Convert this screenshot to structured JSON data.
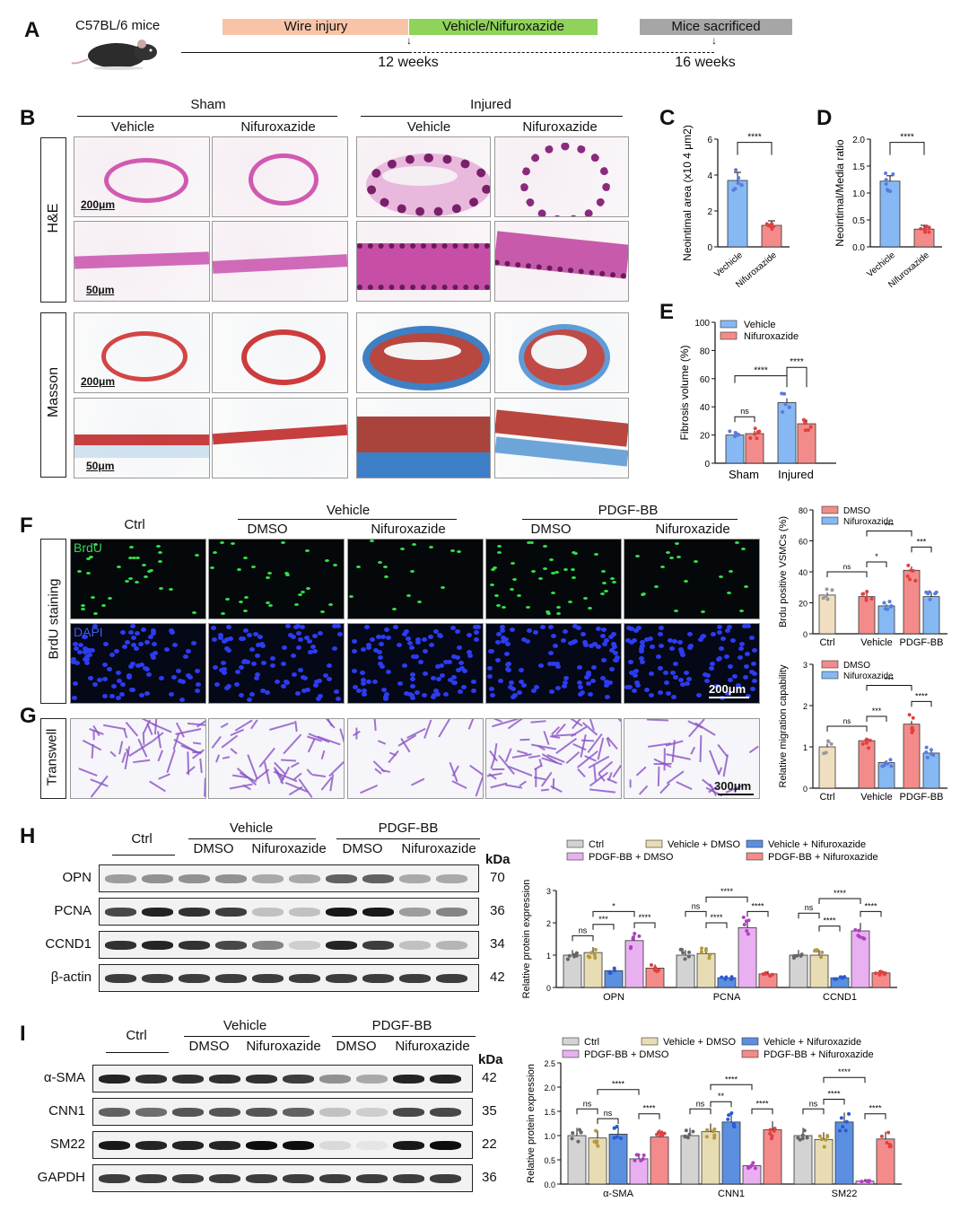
{
  "panelA": {
    "label": "A",
    "mouse": "C57BL/6 mice",
    "bar1": "Wire injury",
    "bar2": "Vehicle/Nifuroxazide",
    "bar3": "Mice sacrificed",
    "t1": "12 weeks",
    "t2": "16 weeks",
    "colors": {
      "bar1": "#f8c4a8",
      "bar2": "#8fd35a",
      "bar3": "#a6a6a6"
    }
  },
  "panelB": {
    "label": "B",
    "group_sham": "Sham",
    "group_injured": "Injured",
    "col_vehicle": "Vehicle",
    "col_nif": "Nifuroxazide",
    "row_he": "H&E",
    "row_masson": "Masson",
    "scale_200": "200μm",
    "scale_50": "50μm"
  },
  "panelC": {
    "label": "C",
    "chart_data": {
      "type": "bar",
      "categories": [
        "Vechicle",
        "Nifuroxazide"
      ],
      "values": [
        3.7,
        1.2
      ],
      "errors": [
        0.45,
        0.25
      ],
      "ylabel": "Neointimal area (x10 4 μm2)",
      "ylim": [
        0,
        6
      ],
      "yticks": [
        "0",
        "2",
        "4",
        "6"
      ],
      "significance": "****",
      "colors": [
        "#86b8f3",
        "#f48b8b"
      ]
    }
  },
  "panelD": {
    "label": "D",
    "chart_data": {
      "type": "bar",
      "categories": [
        "Vechicle",
        "Nifuroxazide"
      ],
      "values": [
        1.22,
        0.33
      ],
      "errors": [
        0.1,
        0.07
      ],
      "ylabel": "Neointimal/Media ratio",
      "ylim": [
        0,
        2.0
      ],
      "yticks": [
        "0.0",
        "0.5",
        "1.0",
        "1.5",
        "2.0"
      ],
      "significance": "****",
      "colors": [
        "#86b8f3",
        "#f48b8b"
      ]
    }
  },
  "panelE": {
    "label": "E",
    "chart_data": {
      "type": "bar",
      "categories": [
        "Sham",
        "Injured"
      ],
      "series": [
        {
          "name": "Vehicle",
          "values": [
            20,
            43
          ],
          "errors": [
            1.5,
            3
          ],
          "color": "#86b8f3"
        },
        {
          "name": "Nifuroxazide",
          "values": [
            21,
            28
          ],
          "errors": [
            2,
            3
          ],
          "color": "#f48b8b"
        }
      ],
      "ylabel": "Fibrosis volume (%)",
      "ylim": [
        0,
        100
      ],
      "yticks": [
        "0",
        "20",
        "40",
        "60",
        "80",
        "100"
      ],
      "sig": [
        "ns",
        "****",
        "****"
      ]
    }
  },
  "panelF": {
    "label": "F",
    "ctrl": "Ctrl",
    "vehicle": "Vehicle",
    "pdgf": "PDGF-BB",
    "dmso": "DMSO",
    "nif": "Nifuroxazide",
    "row": "BrdU staining",
    "brdu": "BrdU",
    "dapi": "DAPI",
    "scale": "200μm",
    "chart_data": {
      "type": "bar",
      "categories": [
        "Ctrl",
        "Vehicle",
        "PDGF-BB"
      ],
      "series": [
        {
          "name": "DMSO",
          "values": [
            25,
            24,
            41
          ],
          "errors": [
            1.5,
            2.5,
            2.5
          ],
          "color": "#f48b8b"
        },
        {
          "name": "Nifuroxazide",
          "values": [
            null,
            18,
            24
          ],
          "errors": [
            null,
            1,
            2.5
          ],
          "color": "#86b8f3"
        }
      ],
      "ctrl_color": "#f0dec0",
      "ylabel": "Brdu positive VSMCs (%)",
      "ylim": [
        0,
        80
      ],
      "yticks": [
        "0",
        "20",
        "40",
        "60",
        "80"
      ],
      "sig": [
        "ns",
        "*",
        "***",
        "***"
      ]
    }
  },
  "panelG": {
    "label": "G",
    "row": "Transwell",
    "scale": "300μm",
    "chart_data": {
      "type": "bar",
      "categories": [
        "Ctrl",
        "Vehicle",
        "PDGF-BB"
      ],
      "series": [
        {
          "name": "DMSO",
          "values": [
            1.0,
            1.15,
            1.55
          ],
          "errors": [
            0.08,
            0.05,
            0.08
          ],
          "color": "#f48b8b"
        },
        {
          "name": "Nifuroxazide",
          "values": [
            null,
            0.62,
            0.85
          ],
          "errors": [
            null,
            0.06,
            0.07
          ],
          "color": "#86b8f3"
        }
      ],
      "ctrl_color": "#f0dec0",
      "ylabel": "Relative migration capability",
      "ylim": [
        0,
        3
      ],
      "yticks": [
        "0",
        "1",
        "2",
        "3"
      ],
      "sig": [
        "ns",
        "***",
        "***",
        "****"
      ]
    }
  },
  "panelH": {
    "label": "H",
    "ctrl": "Ctrl",
    "vehicle": "Vehicle",
    "pdgf": "PDGF-BB",
    "dmso": "DMSO",
    "nif": "Nifuroxazide",
    "kda": "kDa",
    "rows": [
      {
        "name": "OPN",
        "kda": "70"
      },
      {
        "name": "PCNA",
        "kda": "36"
      },
      {
        "name": "CCND1",
        "kda": "34"
      },
      {
        "name": "β-actin",
        "kda": "42"
      }
    ],
    "chart_data": {
      "type": "bar",
      "categories": [
        "OPN",
        "PCNA",
        "CCND1"
      ],
      "series": [
        {
          "name": "Ctrl",
          "values": [
            1.0,
            1.0,
            1.0
          ],
          "color": "#d3d3d3"
        },
        {
          "name": "Vehicle + DMSO",
          "values": [
            1.08,
            1.05,
            1.0
          ],
          "color": "#e8dcb5"
        },
        {
          "name": "Vehicle + Nifuroxazide",
          "values": [
            0.52,
            0.3,
            0.3
          ],
          "color": "#5b8fe0"
        },
        {
          "name": "PDGF-BB + DMSO",
          "values": [
            1.45,
            1.85,
            1.75
          ],
          "color": "#e8b0f0"
        },
        {
          "name": "PDGF-BB + Nifuroxazide",
          "values": [
            0.6,
            0.42,
            0.45
          ],
          "color": "#f48b8b"
        }
      ],
      "ylabel": "Relative protein expression",
      "ylim": [
        0,
        3
      ],
      "yticks": [
        "0",
        "1",
        "2",
        "3"
      ],
      "sig_labels": [
        "ns",
        "***",
        "*",
        "****"
      ]
    }
  },
  "panelI": {
    "label": "I",
    "ctrl": "Ctrl",
    "vehicle": "Vehicle",
    "pdgf": "PDGF-BB",
    "dmso": "DMSO",
    "nif": "Nifuroxazide",
    "kda": "kDa",
    "rows": [
      {
        "name": "α-SMA",
        "kda": "42"
      },
      {
        "name": "CNN1",
        "kda": "35"
      },
      {
        "name": "SM22",
        "kda": "22"
      },
      {
        "name": "GAPDH",
        "kda": "36"
      }
    ],
    "chart_data": {
      "type": "bar",
      "categories": [
        "α-SMA",
        "CNN1",
        "SM22"
      ],
      "series": [
        {
          "name": "Ctrl",
          "values": [
            1.0,
            1.0,
            1.0
          ],
          "color": "#d3d3d3"
        },
        {
          "name": "Vehicle + DMSO",
          "values": [
            0.95,
            1.08,
            0.92
          ],
          "color": "#e8dcb5"
        },
        {
          "name": "Vehicle + Nifuroxazide",
          "values": [
            1.03,
            1.28,
            1.28
          ],
          "color": "#5b8fe0"
        },
        {
          "name": "PDGF-BB + DMSO",
          "values": [
            0.52,
            0.38,
            0.06
          ],
          "color": "#e8b0f0"
        },
        {
          "name": "PDGF-BB + Nifuroxazide",
          "values": [
            0.97,
            1.12,
            0.93
          ],
          "color": "#f48b8b"
        }
      ],
      "ylabel": "Relative protein expression",
      "ylim": [
        0,
        2.5
      ],
      "yticks": [
        "0.0",
        "0.5",
        "1.0",
        "1.5",
        "2.0",
        "2.5"
      ],
      "sig_labels": [
        "ns",
        "**",
        "****"
      ]
    }
  }
}
